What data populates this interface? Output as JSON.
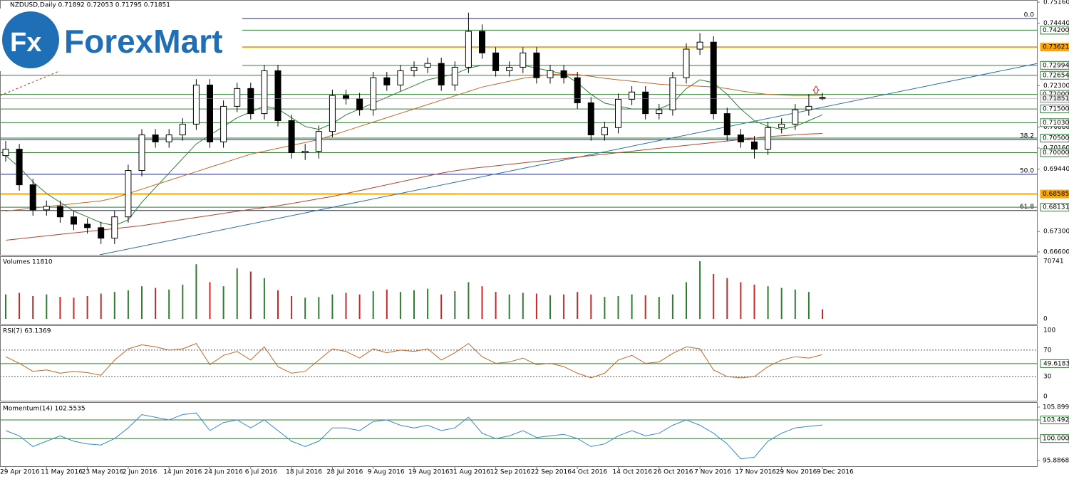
{
  "chart_data": {
    "type": "candlestick",
    "header": "NZDUSD,Daily  0.71892 0.72053 0.71795 0.71851",
    "ylim": [
      0.665,
      0.7521
    ],
    "yticks": [
      {
        "value": 0.7516,
        "label": "0.75160"
      },
      {
        "value": 0.7444,
        "label": "0.74440"
      },
      {
        "value": 0.723,
        "label": "0.72300"
      },
      {
        "value": 0.7088,
        "label": "0.70880"
      },
      {
        "value": 0.7016,
        "label": "0.70160"
      },
      {
        "value": 0.6944,
        "label": "0.69440"
      },
      {
        "value": 0.673,
        "label": "0.67300"
      },
      {
        "value": 0.666,
        "label": "0.66600"
      }
    ],
    "categories": [
      "29 Apr 2016",
      null,
      null,
      "11 May 2016",
      null,
      null,
      "23 May 2016",
      null,
      null,
      "2 Jun 2016",
      null,
      null,
      "14 Jun 2016",
      null,
      null,
      "24 Jun 2016",
      null,
      null,
      "6 Jul 2016",
      null,
      null,
      "18 Jul 2016",
      null,
      null,
      "28 Jul 2016",
      null,
      null,
      "9 Aug 2016",
      null,
      null,
      "19 Aug 2016",
      null,
      null,
      "31 Aug 2016",
      null,
      null,
      "12 Sep 2016",
      null,
      null,
      "22 Sep 2016",
      null,
      null,
      "4 Oct 2016",
      null,
      null,
      "14 Oct 2016",
      null,
      null,
      "26 Oct 2016",
      null,
      null,
      "7 Nov 2016",
      null,
      null,
      "17 Nov 2016",
      null,
      null,
      "29 Nov 2016",
      null,
      null,
      "9 Dec 2016",
      null
    ],
    "ohlc": [
      [
        0.699,
        0.704,
        0.697,
        0.7012
      ],
      [
        0.7012,
        0.703,
        0.687,
        0.689
      ],
      [
        0.689,
        0.691,
        0.6784,
        0.6804
      ],
      [
        0.6804,
        0.6836,
        0.6784,
        0.6816
      ],
      [
        0.6816,
        0.6836,
        0.676,
        0.678
      ],
      [
        0.678,
        0.68,
        0.6735,
        0.6755
      ],
      [
        0.6755,
        0.6775,
        0.6723,
        0.6743
      ],
      [
        0.6743,
        0.6763,
        0.6687,
        0.6707
      ],
      [
        0.6707,
        0.68,
        0.6687,
        0.678
      ],
      [
        0.678,
        0.6959,
        0.676,
        0.6939
      ],
      [
        0.6939,
        0.7081,
        0.6919,
        0.7061
      ],
      [
        0.7061,
        0.7081,
        0.7017,
        0.7037
      ],
      [
        0.7037,
        0.7081,
        0.7017,
        0.7061
      ],
      [
        0.7061,
        0.7118,
        0.7041,
        0.7098
      ],
      [
        0.7098,
        0.7252,
        0.7078,
        0.7232
      ],
      [
        0.7232,
        0.7252,
        0.7017,
        0.7037
      ],
      [
        0.7037,
        0.7179,
        0.7017,
        0.7159
      ],
      [
        0.7159,
        0.724,
        0.7139,
        0.722
      ],
      [
        0.722,
        0.724,
        0.7114,
        0.7134
      ],
      [
        0.7134,
        0.7301,
        0.7114,
        0.7281
      ],
      [
        0.7281,
        0.7301,
        0.709,
        0.711
      ],
      [
        0.711,
        0.713,
        0.698,
        0.7
      ],
      [
        0.7,
        0.703,
        0.6975,
        0.7005
      ],
      [
        0.7005,
        0.7093,
        0.698,
        0.7073
      ],
      [
        0.7073,
        0.7216,
        0.7053,
        0.7196
      ],
      [
        0.7196,
        0.7216,
        0.7165,
        0.7185
      ],
      [
        0.7185,
        0.7205,
        0.7127,
        0.7147
      ],
      [
        0.7147,
        0.7277,
        0.7127,
        0.7257
      ],
      [
        0.7257,
        0.7277,
        0.7212,
        0.7232
      ],
      [
        0.7232,
        0.7301,
        0.7212,
        0.7281
      ],
      [
        0.7281,
        0.7313,
        0.7261,
        0.7293
      ],
      [
        0.7293,
        0.7326,
        0.7273,
        0.7306
      ],
      [
        0.7306,
        0.7326,
        0.7212,
        0.7232
      ],
      [
        0.7232,
        0.7313,
        0.7212,
        0.7293
      ],
      [
        0.7293,
        0.748,
        0.7273,
        0.7416
      ],
      [
        0.7416,
        0.744,
        0.7322,
        0.7342
      ],
      [
        0.7342,
        0.7362,
        0.7261,
        0.7281
      ],
      [
        0.7281,
        0.7313,
        0.7261,
        0.7293
      ],
      [
        0.7293,
        0.7362,
        0.7273,
        0.7342
      ],
      [
        0.7342,
        0.7362,
        0.7237,
        0.7257
      ],
      [
        0.7257,
        0.7301,
        0.7237,
        0.7281
      ],
      [
        0.7281,
        0.7301,
        0.7237,
        0.7257
      ],
      [
        0.7257,
        0.7277,
        0.7151,
        0.7171
      ],
      [
        0.7171,
        0.7191,
        0.7041,
        0.7061
      ],
      [
        0.7061,
        0.7106,
        0.7041,
        0.7086
      ],
      [
        0.7086,
        0.7203,
        0.7066,
        0.7183
      ],
      [
        0.7183,
        0.7228,
        0.7163,
        0.7208
      ],
      [
        0.7208,
        0.7228,
        0.7114,
        0.7134
      ],
      [
        0.7134,
        0.7167,
        0.7114,
        0.7147
      ],
      [
        0.7147,
        0.7277,
        0.7127,
        0.7257
      ],
      [
        0.7257,
        0.7375,
        0.7237,
        0.7355
      ],
      [
        0.7355,
        0.741,
        0.7335,
        0.7379
      ],
      [
        0.7379,
        0.7399,
        0.7114,
        0.7134
      ],
      [
        0.7134,
        0.7154,
        0.7041,
        0.7061
      ],
      [
        0.7061,
        0.7081,
        0.7017,
        0.7037
      ],
      [
        0.7037,
        0.7057,
        0.698,
        0.7012
      ],
      [
        0.7012,
        0.7106,
        0.6992,
        0.7086
      ],
      [
        0.7086,
        0.7118,
        0.7066,
        0.7098
      ],
      [
        0.7098,
        0.7167,
        0.7078,
        0.7147
      ],
      [
        0.7147,
        0.72,
        0.7127,
        0.7159
      ],
      [
        0.71892,
        0.72053,
        0.71795,
        0.71851
      ]
    ],
    "up_color": "#ffffff",
    "down_color": "#000000",
    "moving_averages": [
      {
        "color": "#2e7d32",
        "values": [
          0.699,
          0.695,
          0.69,
          0.686,
          0.683,
          0.68,
          0.678,
          0.676,
          0.675,
          0.677,
          0.683,
          0.688,
          0.693,
          0.698,
          0.703,
          0.706,
          0.709,
          0.712,
          0.714,
          0.716,
          0.715,
          0.712,
          0.709,
          0.708,
          0.71,
          0.713,
          0.715,
          0.717,
          0.719,
          0.721,
          0.723,
          0.725,
          0.726,
          0.727,
          0.729,
          0.73,
          0.73,
          0.73,
          0.73,
          0.729,
          0.728,
          0.727,
          0.724,
          0.72,
          0.717,
          0.716,
          0.715,
          0.715,
          0.715,
          0.717,
          0.722,
          0.725,
          0.724,
          0.72,
          0.715,
          0.711,
          0.709,
          0.708,
          0.709,
          0.711,
          0.713
        ]
      },
      {
        "color": "#c0692c",
        "values": [
          0.68,
          0.6805,
          0.681,
          0.6815,
          0.682,
          0.6825,
          0.683,
          0.6835,
          0.6845,
          0.686,
          0.6875,
          0.689,
          0.6905,
          0.692,
          0.6935,
          0.695,
          0.6965,
          0.698,
          0.6995,
          0.7005,
          0.7015,
          0.7025,
          0.7035,
          0.7045,
          0.706,
          0.7075,
          0.709,
          0.7105,
          0.712,
          0.7135,
          0.715,
          0.7165,
          0.718,
          0.7195,
          0.721,
          0.7225,
          0.7235,
          0.7245,
          0.7255,
          0.7262,
          0.7268,
          0.727,
          0.7268,
          0.7262,
          0.7255,
          0.725,
          0.7245,
          0.724,
          0.7235,
          0.7232,
          0.723,
          0.7228,
          0.7225,
          0.722,
          0.7212,
          0.7205,
          0.72,
          0.7198,
          0.7196,
          0.7196,
          0.7197
        ]
      },
      {
        "color": "#b5452a",
        "values": [
          0.67,
          0.6705,
          0.671,
          0.6715,
          0.672,
          0.6725,
          0.673,
          0.6735,
          0.674,
          0.6745,
          0.675,
          0.6757,
          0.6764,
          0.6771,
          0.6778,
          0.6785,
          0.6792,
          0.6799,
          0.6806,
          0.6812,
          0.6818,
          0.6826,
          0.6834,
          0.6842,
          0.685,
          0.686,
          0.687,
          0.688,
          0.689,
          0.69,
          0.691,
          0.692,
          0.693,
          0.6938,
          0.6945,
          0.695,
          0.6955,
          0.696,
          0.6965,
          0.697,
          0.6975,
          0.698,
          0.6985,
          0.699,
          0.6995,
          0.7,
          0.7005,
          0.701,
          0.7015,
          0.702,
          0.7025,
          0.703,
          0.7035,
          0.704,
          0.7045,
          0.705,
          0.7055,
          0.7058,
          0.7061,
          0.7064,
          0.7066
        ]
      }
    ],
    "trendlines": [
      {
        "color": "#2a6fa8",
        "dashed": false,
        "start": [
          6.9,
          0.665
        ],
        "end": [
          75.8,
          0.7306
        ]
      },
      {
        "color": "#c62828",
        "dashed": true,
        "start": [
          -0.4,
          0.7196
        ],
        "end": [
          4.0,
          0.7281
        ]
      }
    ],
    "levels": [
      {
        "value": 0.742,
        "label": "0.74200",
        "color": "#2e7d32"
      },
      {
        "value": 0.73621,
        "label": "0.73621",
        "color": "#ffa500"
      },
      {
        "value": 0.72994,
        "label": "0.72994",
        "color": "#2e7d32"
      },
      {
        "value": 0.72654,
        "label": "0.72654",
        "color": "#2e7d32"
      },
      {
        "value": 0.72,
        "label": "0.72000",
        "color": "#2e7d32"
      },
      {
        "value": 0.715,
        "label": "0.71500",
        "color": "#2e7d32"
      },
      {
        "value": 0.7103,
        "label": "0.71030",
        "color": "#2e7d32"
      },
      {
        "value": 0.705,
        "label": "0.70500",
        "color": "#2e7d32"
      },
      {
        "value": 0.7,
        "label": "0.70000",
        "color": "#2e7d32"
      },
      {
        "value": 0.68585,
        "label": "0.68585",
        "color": "#ffa500"
      },
      {
        "value": 0.68131,
        "label": "0.68131",
        "color": "#2e7d32"
      }
    ],
    "current": {
      "value": 0.71851,
      "label": "0.71851"
    },
    "fibo_color": "#1a237e",
    "fibo": [
      {
        "label": "0.0",
        "value": 0.746
      },
      {
        "label": "38.2",
        "value": 0.7045
      },
      {
        "label": "50.0",
        "value": 0.6926
      },
      {
        "label": "61.8",
        "value": 0.6802
      }
    ],
    "volumes": {
      "title": "Volumes 11810",
      "ylim": [
        -6000,
        75900
      ],
      "yticks": [
        70741,
        0
      ],
      "up_color": "#2e7d32",
      "down_color": "#c62828",
      "values": [
        30000,
        32000,
        28000,
        30000,
        27000,
        26000,
        28000,
        31000,
        33000,
        35000,
        40000,
        38000,
        36000,
        42000,
        67000,
        45000,
        40000,
        62000,
        58000,
        50000,
        35000,
        28000,
        26000,
        27000,
        30000,
        32000,
        30000,
        34000,
        36000,
        33000,
        35000,
        37000,
        30000,
        34000,
        45000,
        40000,
        33000,
        30000,
        32000,
        31000,
        29000,
        30000,
        33000,
        30000,
        27000,
        28000,
        30000,
        29000,
        27000,
        30000,
        45000,
        70741,
        55000,
        50000,
        45000,
        42000,
        40000,
        38000,
        36000,
        33000,
        11810
      ]
    },
    "rsi": {
      "title": "RSI(7) 63.1369",
      "color": "#c0692c",
      "ylim": [
        -6.5,
        106.5
      ],
      "yticks": [
        100,
        70,
        49.6183,
        30,
        0
      ],
      "dashed_levels": [
        70,
        30
      ],
      "line_level": 49.6183,
      "line_color": "#2e7d32",
      "values": [
        60,
        50,
        38,
        40,
        35,
        38,
        36,
        32,
        55,
        72,
        78,
        75,
        70,
        72,
        80,
        48,
        62,
        68,
        55,
        75,
        45,
        35,
        38,
        55,
        72,
        68,
        58,
        72,
        66,
        70,
        68,
        72,
        55,
        66,
        80,
        60,
        50,
        52,
        58,
        48,
        50,
        45,
        35,
        28,
        35,
        55,
        62,
        50,
        52,
        65,
        75,
        72,
        40,
        30,
        28,
        30,
        45,
        55,
        60,
        58,
        63.1369
      ]
    },
    "momentum": {
      "title": "Momentum(14) 102.5535",
      "color": "#3a86c8",
      "ylim": [
        94.82,
        106.7
      ],
      "yticks": [
        105.8993,
        103.4924,
        {
          "value": 100,
          "label": "100.0000"
        },
        95.8868
      ],
      "line_levels": [
        103.4924,
        100
      ],
      "line_color": "#2e7d32",
      "values": [
        101.5,
        100.5,
        98.5,
        99.5,
        100.5,
        99.5,
        99.0,
        98.8,
        100.0,
        102.0,
        104.5,
        104.0,
        103.5,
        104.5,
        104.8,
        101.5,
        103.0,
        103.5,
        102.0,
        103.5,
        101.5,
        99.5,
        98.5,
        99.5,
        102.0,
        102.0,
        101.5,
        103.2,
        103.5,
        102.5,
        102.0,
        102.5,
        101.5,
        102.0,
        104.0,
        101.0,
        100.0,
        100.5,
        101.5,
        100.2,
        100.5,
        100.8,
        100.0,
        98.5,
        99.0,
        100.5,
        101.5,
        100.5,
        101.0,
        102.5,
        103.5,
        102.5,
        101.0,
        99.0,
        96.2,
        96.5,
        99.5,
        101.0,
        102.0,
        102.3,
        102.5535
      ]
    }
  }
}
